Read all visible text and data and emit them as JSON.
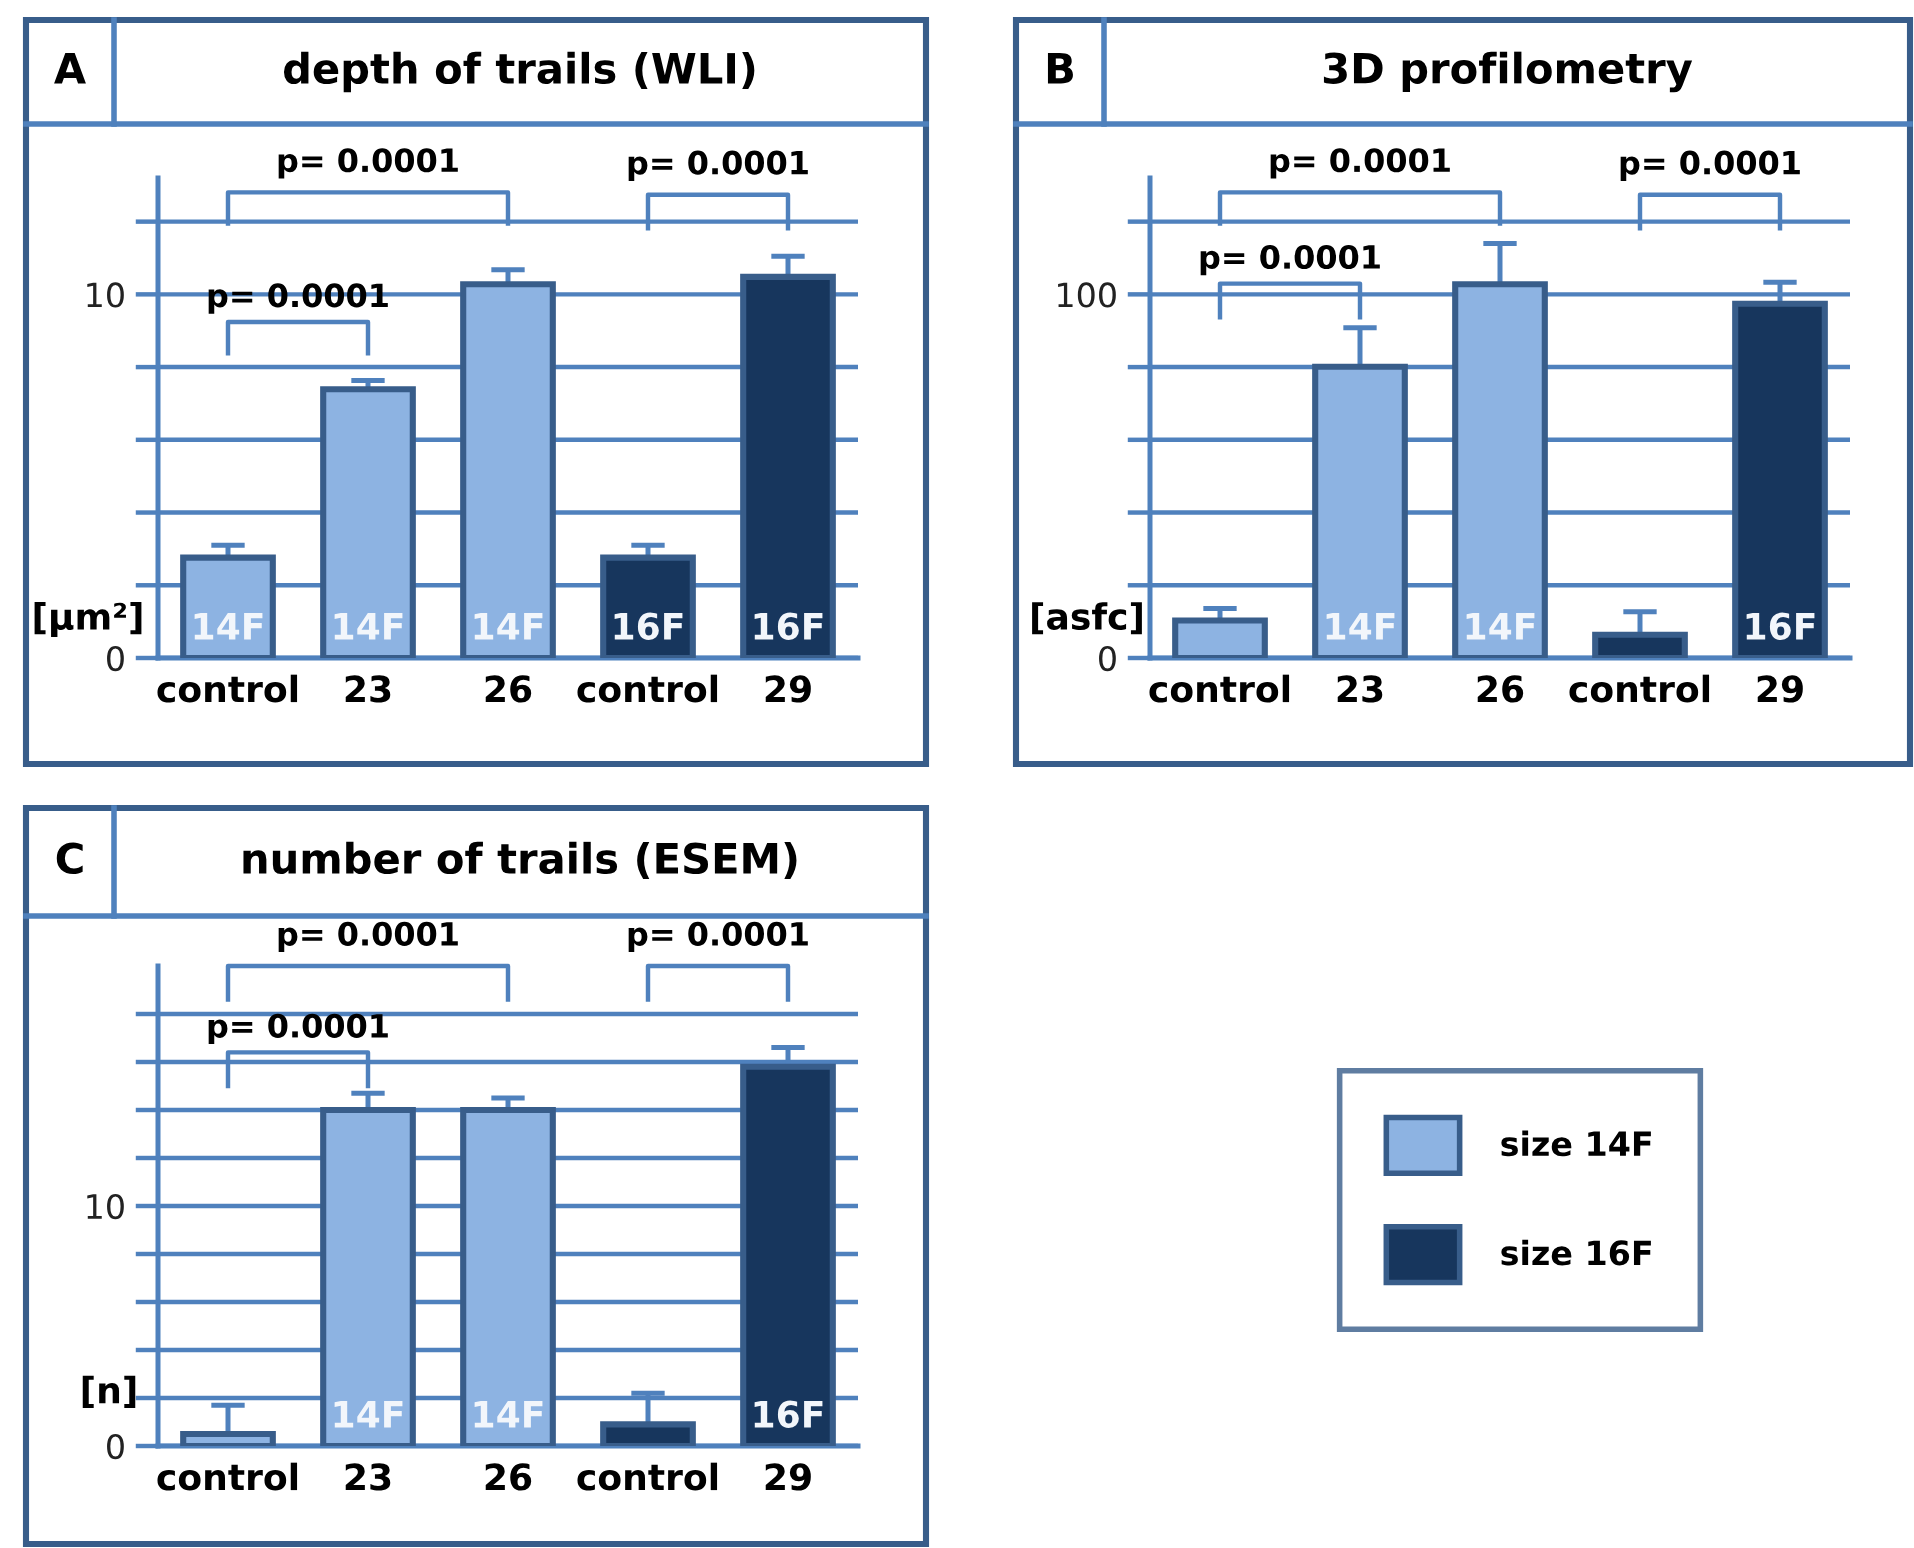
{
  "chart_data": [
    {
      "type": "bar",
      "title": "depth of trails (WLI)",
      "ylabel": "[μm²]",
      "categories": [
        "control",
        "23",
        "26",
        "control",
        "29"
      ],
      "series": [
        {
          "color": "#8db3e2",
          "values": [
            2.76,
            7.39,
            10.28,
            null,
            null
          ],
          "errors": [
            0.34,
            0.24,
            0.4,
            null,
            null
          ]
        },
        {
          "color": "#17365d",
          "values": [
            null,
            null,
            null,
            2.76,
            10.48
          ],
          "errors": [
            null,
            null,
            null,
            0.34,
            0.57
          ]
        }
      ],
      "ylim": [
        0,
        13.2
      ],
      "yticks": [
        0,
        {
          "value": 2,
          "label": null
        },
        {
          "value": 4,
          "label": null
        },
        {
          "value": 6,
          "label": null
        },
        {
          "value": 8,
          "label": null
        },
        10,
        {
          "value": 12,
          "label": null
        }
      ],
      "grid": "y",
      "annotations": [
        "A",
        "p= 0.0001",
        "p= 0.0001",
        "p= 0.0001",
        "14F",
        "14F",
        "14F",
        "16F",
        "16F"
      ]
    },
    {
      "type": "bar",
      "title": "3D profilometry",
      "ylabel": "[asfc]",
      "categories": [
        "control",
        "23",
        "26",
        "control",
        "29"
      ],
      "series": [
        {
          "color": "#8db3e2",
          "values": [
            10.3,
            80.1,
            102.8,
            null,
            null
          ],
          "errors": [
            3.3,
            10.7,
            11.2,
            null,
            null
          ]
        },
        {
          "color": "#17365d",
          "values": [
            null,
            null,
            null,
            6.4,
            97.4
          ],
          "errors": [
            null,
            null,
            null,
            6.3,
            5.9
          ]
        }
      ],
      "ylim": [
        0,
        132
      ],
      "yticks": [
        0,
        {
          "value": 20,
          "label": null
        },
        {
          "value": 40,
          "label": null
        },
        {
          "value": 60,
          "label": null
        },
        {
          "value": 80,
          "label": null
        },
        100,
        {
          "value": 120,
          "label": null
        }
      ],
      "grid": "y",
      "annotations": [
        "B",
        "p= 0.0001",
        "p= 0.0001",
        "p= 0.0001",
        "14F",
        "14F",
        "16F"
      ]
    },
    {
      "type": "bar",
      "title": "number of trails (ESEM)",
      "ylabel": "[n]",
      "categories": [
        "control",
        "23",
        "26",
        "control",
        "29"
      ],
      "series": [
        {
          "name": "size 14F",
          "color": "#8db3e2",
          "values": [
            0.5,
            14.0,
            14.0,
            null,
            null
          ],
          "errors": [
            1.2,
            0.7,
            0.5,
            null,
            null
          ]
        },
        {
          "name": "size 16F",
          "color": "#17365d",
          "values": [
            null,
            null,
            null,
            0.9,
            15.8
          ],
          "errors": [
            null,
            null,
            null,
            1.3,
            0.8
          ]
        }
      ],
      "ylim": [
        0,
        20
      ],
      "yticks": [
        0,
        {
          "value": 2,
          "label": null
        },
        {
          "value": 4,
          "label": null
        },
        {
          "value": 6,
          "label": null
        },
        {
          "value": 8,
          "label": null
        },
        10,
        {
          "value": 12,
          "label": null
        },
        {
          "value": 14,
          "label": null
        },
        {
          "value": 16,
          "label": null
        },
        {
          "value": 18,
          "label": null
        }
      ],
      "grid": "y",
      "legend": "right",
      "annotations": [
        "C",
        "p= 0.0001",
        "p= 0.0001",
        "p= 0.0001",
        "14F",
        "14F",
        "16F"
      ]
    }
  ]
}
